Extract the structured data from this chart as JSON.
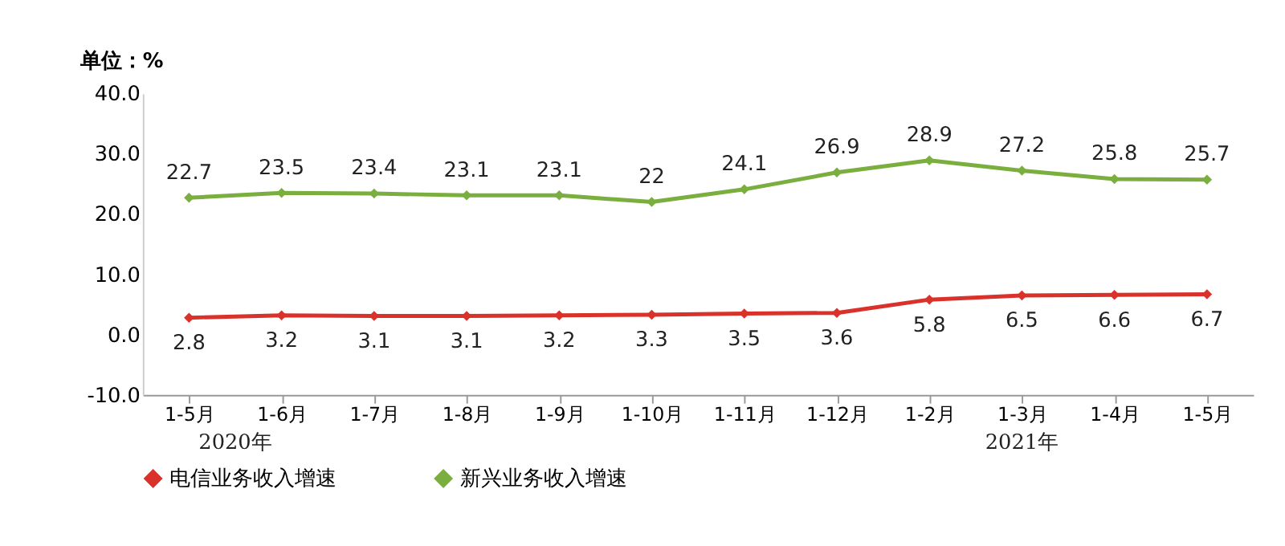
{
  "chart_data": {
    "type": "line",
    "ylabel": "单位：%",
    "categories": [
      "1-5月",
      "1-6月",
      "1-7月",
      "1-8月",
      "1-9月",
      "1-10月",
      "1-11月",
      "1-12月",
      "1-2月",
      "1-3月",
      "1-4月",
      "1-5月"
    ],
    "series": [
      {
        "name": "电信业务收入增速",
        "color": "#d9322b",
        "values": [
          2.8,
          3.2,
          3.1,
          3.1,
          3.2,
          3.3,
          3.5,
          3.6,
          5.8,
          6.5,
          6.6,
          6.7
        ]
      },
      {
        "name": "新兴业务收入增速",
        "color": "#7aae3e",
        "values": [
          22.7,
          23.5,
          23.4,
          23.1,
          23.1,
          22,
          24.1,
          26.9,
          28.9,
          27.2,
          25.8,
          25.7
        ]
      }
    ],
    "ylim": [
      -10,
      40
    ],
    "yticks": [
      {
        "value": -10,
        "label": "-10.0"
      },
      {
        "value": 0,
        "label": "0.0"
      },
      {
        "value": 10,
        "label": "10.0"
      },
      {
        "value": 20,
        "label": "20.0"
      },
      {
        "value": 30,
        "label": "30.0"
      },
      {
        "value": 40,
        "label": "40.0"
      }
    ],
    "annotations": [
      "2020年",
      "2021年"
    ],
    "data_labels": true,
    "grid": false,
    "legend": "bottom",
    "marker": "diamond",
    "line_style": "solid"
  }
}
